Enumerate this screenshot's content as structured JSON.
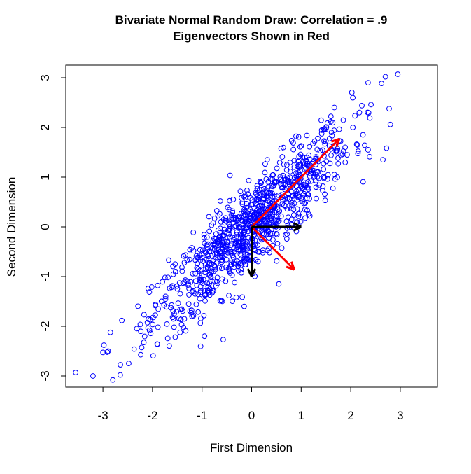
{
  "chart_data": {
    "type": "scatter",
    "title": "Bivariate Normal Random Draw: Correlation = .9",
    "subtitle": "Eigenvectors Shown in Red",
    "xlabel": "First Dimension",
    "ylabel": "Second Dimension",
    "xlim": [
      -3.75,
      3.75
    ],
    "ylim": [
      -3.25,
      3.2
    ],
    "x_ticks": [
      -3,
      -2,
      -1,
      0,
      1,
      2,
      3
    ],
    "y_ticks": [
      -3,
      -2,
      -1,
      0,
      1,
      2,
      3
    ],
    "x_tick_labels": [
      "-3",
      "-2",
      "-1",
      "0",
      "1",
      "2",
      "3"
    ],
    "y_tick_labels": [
      "-3",
      "-2",
      "-1",
      "0",
      "1",
      "2",
      "3"
    ],
    "grid": false,
    "series": [
      {
        "name": "draws",
        "distribution": "bivariate normal",
        "n": 1000,
        "correlation": 0.9,
        "color": "#0000ff",
        "marker": "open-circle",
        "notable_points": [
          [
            -3.55,
            -2.93
          ],
          [
            -3.2,
            -3.0
          ],
          [
            -2.98,
            -2.38
          ],
          [
            -2.8,
            -3.08
          ],
          [
            -2.65,
            -2.98
          ],
          [
            -2.37,
            -2.46
          ],
          [
            2.95,
            3.07
          ],
          [
            2.7,
            3.02
          ],
          [
            2.35,
            2.9
          ],
          [
            2.8,
            2.06
          ],
          [
            2.35,
            1.55
          ],
          [
            2.65,
            1.35
          ],
          [
            0.55,
            -1.15
          ],
          [
            -0.95,
            -2.2
          ],
          [
            -0.15,
            -1.6
          ]
        ]
      }
    ],
    "vectors": [
      {
        "name": "eigenvector-1",
        "from": [
          0,
          0
        ],
        "to": [
          1.77,
          1.77
        ],
        "color": "#ff0000"
      },
      {
        "name": "eigenvector-2",
        "from": [
          0,
          0
        ],
        "to": [
          0.86,
          -0.86
        ],
        "color": "#ff0000"
      },
      {
        "name": "unit-x",
        "from": [
          0,
          0
        ],
        "to": [
          1.0,
          0
        ],
        "color": "#000000"
      },
      {
        "name": "unit-y",
        "from": [
          0,
          0
        ],
        "to": [
          0,
          -1.0
        ],
        "color": "#000000"
      }
    ]
  }
}
